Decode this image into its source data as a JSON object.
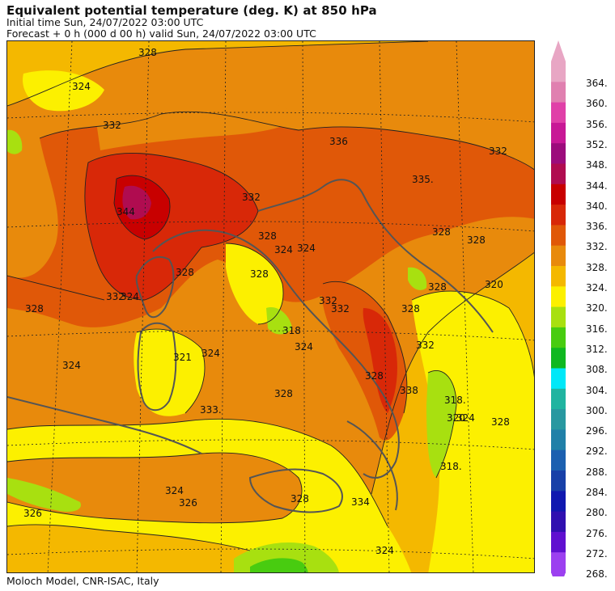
{
  "header": {
    "title": "Equivalent potential temperature (deg. K) at 850 hPa",
    "initial_line": "Initial time  Sun, 24/07/2022  03:00 UTC",
    "forecast_line": "Forecast  +   0 h  (000 d 00 h)  valid Sun, 24/07/2022 03:00 UTC"
  },
  "footer": {
    "credit": "Moloch Model, CNR-ISAC, Italy"
  },
  "legend": {
    "levels": [
      "364.",
      "360.",
      "356.",
      "352.",
      "348.",
      "344.",
      "340.",
      "336.",
      "332.",
      "328.",
      "324.",
      "320.",
      "316.",
      "312.",
      "308.",
      "304.",
      "300.",
      "296.",
      "292.",
      "288.",
      "284.",
      "280.",
      "276.",
      "272.",
      "268."
    ],
    "colors": [
      "#e8a6c4",
      "#e080b0",
      "#e040a8",
      "#c81896",
      "#9c0c7c",
      "#b00c50",
      "#c80000",
      "#d82808",
      "#e05808",
      "#e88a0c",
      "#f4b800",
      "#fcf000",
      "#a8e010",
      "#48cc10",
      "#10b820",
      "#00e8f8",
      "#20b4a0",
      "#2898a0",
      "#2080a8",
      "#1c60b0",
      "#1840a8",
      "#1018b0",
      "#3010b0",
      "#6010d0",
      "#9c40f0"
    ]
  },
  "map": {
    "contour_labels": [
      {
        "text": "328"
      },
      {
        "text": "324"
      },
      {
        "text": "332"
      },
      {
        "text": "335."
      },
      {
        "text": "332"
      },
      {
        "text": "332"
      },
      {
        "text": "328"
      },
      {
        "text": "324"
      },
      {
        "text": "344"
      },
      {
        "text": "332"
      },
      {
        "text": "328"
      },
      {
        "text": "324"
      },
      {
        "text": "328"
      },
      {
        "text": "328"
      },
      {
        "text": "320"
      },
      {
        "text": "328"
      },
      {
        "text": "328"
      },
      {
        "text": "332"
      },
      {
        "text": "324"
      },
      {
        "text": "332"
      },
      {
        "text": "318"
      },
      {
        "text": "324"
      },
      {
        "text": "336"
      },
      {
        "text": "328"
      },
      {
        "text": "324"
      },
      {
        "text": "321"
      },
      {
        "text": "324"
      },
      {
        "text": "328"
      },
      {
        "text": "333."
      },
      {
        "text": "338"
      },
      {
        "text": "318."
      },
      {
        "text": "320"
      },
      {
        "text": "324"
      },
      {
        "text": "328"
      },
      {
        "text": "328"
      },
      {
        "text": "324"
      },
      {
        "text": "318."
      },
      {
        "text": "328"
      },
      {
        "text": "326"
      },
      {
        "text": "326"
      },
      {
        "text": "334"
      },
      {
        "text": "324"
      },
      {
        "text": "332"
      },
      {
        "text": "328"
      }
    ]
  }
}
